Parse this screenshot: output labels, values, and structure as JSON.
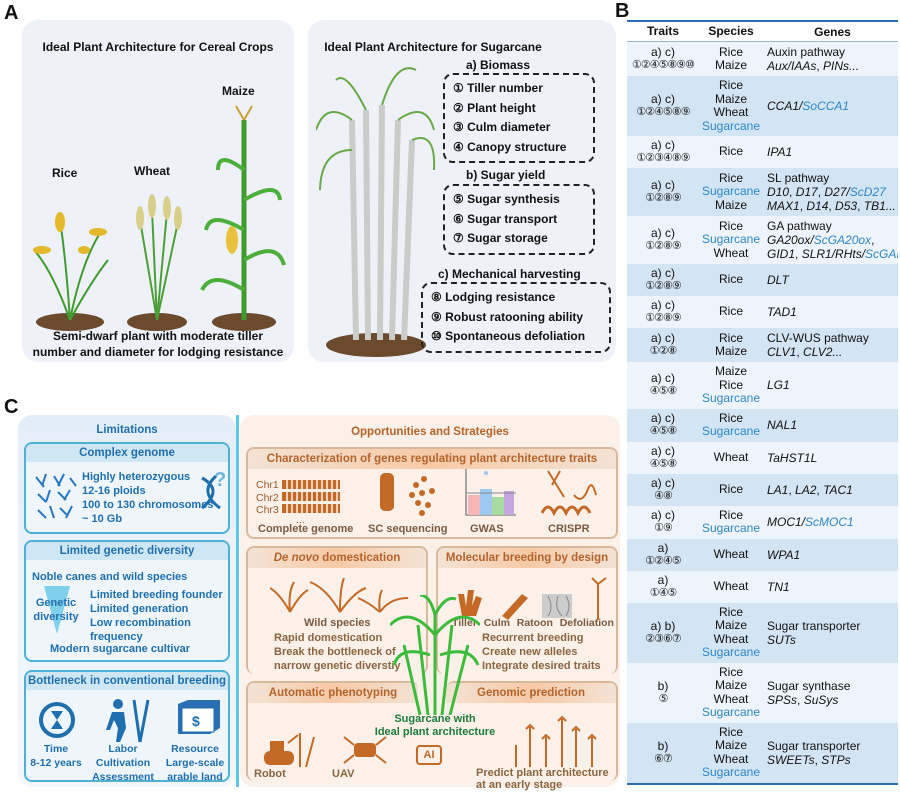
{
  "panel_labels": {
    "a": "A",
    "b": "B",
    "c": "C"
  },
  "panelA": {
    "left": {
      "title": "Ideal Plant Architecture for Cereal Crops",
      "plants": [
        "Rice",
        "Wheat",
        "Maize"
      ],
      "caption": [
        "Semi-dwarf plant with moderate tiller",
        "number and diameter for lodging resistance"
      ]
    },
    "right": {
      "title": "Ideal Plant Architecture for Sugarcane",
      "groups": [
        {
          "heading": "a) Biomass",
          "items": [
            "① Tiller number",
            "② Plant height",
            "③ Culm diameter",
            "④ Canopy structure"
          ]
        },
        {
          "heading": "b) Sugar yield",
          "items": [
            "⑤ Sugar synthesis",
            "⑥ Sugar transport",
            "⑦ Sugar storage"
          ]
        },
        {
          "heading": "c) Mechanical harvesting",
          "items": [
            "⑧ Lodging resistance",
            "⑨ Robust ratooning ability",
            "⑩ Spontaneous defoliation"
          ]
        }
      ]
    }
  },
  "panelB": {
    "headers": [
      "Traits",
      "Species",
      "Genes"
    ],
    "colors": {
      "accent": "#2d86c8",
      "row_dark": "#d3e4f4",
      "row_light": "#eef4fb"
    },
    "rows": [
      {
        "cat": "a) c)",
        "nums": "①②④⑤⑧⑨⑩",
        "species": [
          [
            "Rice",
            0
          ],
          [
            "Maize",
            0
          ]
        ],
        "genes": [
          [
            [
              "Auxin pathway",
              0,
              0
            ]
          ],
          [
            [
              "Aux/IAAs",
              1,
              0
            ],
            [
              ", ",
              0,
              0
            ],
            [
              "PINs...",
              1,
              0
            ]
          ]
        ]
      },
      {
        "cat": "a) c)",
        "nums": "①②④⑤⑧⑨",
        "species": [
          [
            "Rice",
            0
          ],
          [
            "Maize",
            0
          ],
          [
            "Wheat",
            0
          ],
          [
            "Sugarcane",
            1
          ]
        ],
        "genes": [
          [
            [
              "CCA1/",
              1,
              0
            ],
            [
              "SoCCA1",
              1,
              1
            ]
          ]
        ]
      },
      {
        "cat": "a) c)",
        "nums": "①②③④⑧⑨",
        "species": [
          [
            "Rice",
            0
          ]
        ],
        "genes": [
          [
            [
              "IPA1",
              1,
              0
            ]
          ]
        ]
      },
      {
        "cat": "a) c)",
        "nums": "①②⑧⑨",
        "species": [
          [
            "Rice",
            0
          ],
          [
            "Sugarcane",
            1
          ],
          [
            "Maize",
            0
          ]
        ],
        "genes": [
          [
            [
              "SL pathway",
              0,
              0
            ]
          ],
          [
            [
              "D10",
              1,
              0
            ],
            [
              ", ",
              0,
              0
            ],
            [
              "D17",
              1,
              0
            ],
            [
              ", ",
              0,
              0
            ],
            [
              "D27/",
              1,
              0
            ],
            [
              "ScD27",
              1,
              1
            ]
          ],
          [
            [
              "MAX1",
              1,
              0
            ],
            [
              ", ",
              0,
              0
            ],
            [
              "D14",
              1,
              0
            ],
            [
              ", ",
              0,
              0
            ],
            [
              "D53",
              1,
              0
            ],
            [
              ", ",
              0,
              0
            ],
            [
              "TB1...",
              1,
              0
            ]
          ]
        ]
      },
      {
        "cat": "a) c)",
        "nums": "①②⑧⑨",
        "species": [
          [
            "Rice",
            0
          ],
          [
            "Sugarcane",
            1
          ],
          [
            "Wheat",
            0
          ]
        ],
        "genes": [
          [
            [
              "GA pathway",
              0,
              0
            ]
          ],
          [
            [
              "GA20ox/",
              1,
              0
            ],
            [
              "ScGA20ox",
              1,
              1
            ],
            [
              ",",
              0,
              0
            ]
          ],
          [
            [
              "GID1",
              1,
              0
            ],
            [
              ", ",
              0,
              0
            ],
            [
              "SLR1/RHts/",
              1,
              0
            ],
            [
              "ScGAI...",
              1,
              1
            ]
          ]
        ]
      },
      {
        "cat": "a) c)",
        "nums": "①②⑧⑨",
        "species": [
          [
            "Rice",
            0
          ]
        ],
        "genes": [
          [
            [
              "DLT",
              1,
              0
            ]
          ]
        ]
      },
      {
        "cat": "a) c)",
        "nums": "①②⑧⑨",
        "species": [
          [
            "Rice",
            0
          ]
        ],
        "genes": [
          [
            [
              "TAD1",
              1,
              0
            ]
          ]
        ]
      },
      {
        "cat": "a) c)",
        "nums": "①②⑧",
        "species": [
          [
            "Rice",
            0
          ],
          [
            "Maize",
            0
          ]
        ],
        "genes": [
          [
            [
              "CLV-WUS pathway",
              0,
              0
            ]
          ],
          [
            [
              "CLV1",
              1,
              0
            ],
            [
              ", ",
              0,
              0
            ],
            [
              "CLV2...",
              1,
              0
            ]
          ]
        ]
      },
      {
        "cat": "a) c)",
        "nums": "④⑤⑧",
        "species": [
          [
            "Maize",
            0
          ],
          [
            "Rice",
            0
          ],
          [
            "Sugarcane",
            1
          ]
        ],
        "genes": [
          [
            [
              "LG1",
              1,
              0
            ]
          ]
        ]
      },
      {
        "cat": "a) c)",
        "nums": "④⑤⑧",
        "species": [
          [
            "Rice",
            0
          ],
          [
            "Sugarcane",
            1
          ]
        ],
        "genes": [
          [
            [
              "NAL1",
              1,
              0
            ]
          ]
        ]
      },
      {
        "cat": "a) c)",
        "nums": "④⑤⑧",
        "species": [
          [
            "Wheat",
            0
          ]
        ],
        "genes": [
          [
            [
              "TaHST1L",
              1,
              0
            ]
          ]
        ]
      },
      {
        "cat": "a) c)",
        "nums": "④⑧",
        "species": [
          [
            "Rice",
            0
          ]
        ],
        "genes": [
          [
            [
              "LA1",
              1,
              0
            ],
            [
              ", ",
              0,
              0
            ],
            [
              "LA2",
              1,
              0
            ],
            [
              ", ",
              0,
              0
            ],
            [
              "TAC1",
              1,
              0
            ]
          ]
        ]
      },
      {
        "cat": "a) c)",
        "nums": "①⑨",
        "species": [
          [
            "Rice",
            0
          ],
          [
            "Sugarcane",
            1
          ]
        ],
        "genes": [
          [
            [
              "MOC1/",
              1,
              0
            ],
            [
              "ScMOC1",
              1,
              1
            ]
          ]
        ]
      },
      {
        "cat": "a)",
        "nums": "①②④⑤",
        "species": [
          [
            "Wheat",
            0
          ]
        ],
        "genes": [
          [
            [
              "WPA1",
              1,
              0
            ]
          ]
        ]
      },
      {
        "cat": "a)",
        "nums": "①④⑤",
        "species": [
          [
            "Wheat",
            0
          ]
        ],
        "genes": [
          [
            [
              "TN1",
              1,
              0
            ]
          ]
        ]
      },
      {
        "cat": "a) b)",
        "nums": "②③⑥⑦",
        "species": [
          [
            "Rice",
            0
          ],
          [
            "Maize",
            0
          ],
          [
            "Wheat",
            0
          ],
          [
            "Sugarcane",
            1
          ]
        ],
        "genes": [
          [
            [
              "Sugar transporter",
              0,
              0
            ]
          ],
          [
            [
              "SUTs",
              1,
              0
            ]
          ]
        ]
      },
      {
        "cat": "b)",
        "nums": "⑤",
        "species": [
          [
            "Rice",
            0
          ],
          [
            "Maize",
            0
          ],
          [
            "Wheat",
            0
          ],
          [
            "Sugarcane",
            1
          ]
        ],
        "genes": [
          [
            [
              "Sugar synthase",
              0,
              0
            ]
          ],
          [
            [
              "SPSs",
              1,
              0
            ],
            [
              ", ",
              0,
              0
            ],
            [
              "SuSys",
              1,
              0
            ]
          ]
        ]
      },
      {
        "cat": "b)",
        "nums": "⑥⑦",
        "species": [
          [
            "Rice",
            0
          ],
          [
            "Maize",
            0
          ],
          [
            "Wheat",
            0
          ],
          [
            "Sugarcane",
            1
          ]
        ],
        "genes": [
          [
            [
              "Sugar transporter",
              0,
              0
            ]
          ],
          [
            [
              "SWEETs",
              1,
              0
            ],
            [
              ", ",
              0,
              0
            ],
            [
              "STPs",
              1,
              0
            ]
          ]
        ]
      }
    ]
  },
  "panelC": {
    "limitations": {
      "title": "Limitations",
      "complex": {
        "title": "Complex genome",
        "lines": [
          "Highly heterozygous",
          "12-16 ploids",
          "100 to 130 chromosomes",
          "~ 10 Gb"
        ]
      },
      "diversity": {
        "title": "Limited genetic diversity",
        "top": "Noble canes and wild species",
        "axis": "Genetic diversity",
        "lines": [
          "Limited breeding founder",
          "Limited generation",
          "Low recombination frequency"
        ],
        "bottom": "Modern sugarcane cultivar"
      },
      "bottleneck": {
        "title": "Bottleneck in conventional breeding",
        "items": [
          [
            "Time",
            "8-12 years"
          ],
          [
            "Labor",
            "Cultivation",
            "Assessment"
          ],
          [
            "Resource",
            "Large-scale",
            "arable land"
          ]
        ]
      }
    },
    "opportunities": {
      "title": "Opportunities and Strategies",
      "genes": {
        "title": "Characterization of genes regulating plant architecture traits",
        "chr": [
          "Chr1",
          "Chr2",
          "Chr3",
          "..."
        ],
        "items": [
          "Complete genome",
          "SC sequencing",
          "GWAS",
          "CRISPR"
        ]
      },
      "denovo": {
        "title_italic": "De novo",
        "title_rest": " domestication",
        "label": "Wild species",
        "lines": [
          "Rapid domestication",
          "Break the bottleneck of",
          "narrow genetic diverstiy"
        ]
      },
      "design": {
        "title": "Molecular breeding by design",
        "items": [
          "Tiller",
          "Culm",
          "Ratoon",
          "Defoliation"
        ],
        "lines": [
          "Recurrent breeding",
          "Create new alleles",
          "Integrate desired traits"
        ]
      },
      "center": [
        "Sugarcane with",
        "Ideal plant architecture"
      ],
      "pheno": {
        "title": "Automatic phenotyping",
        "items": [
          "Robot",
          "UAV"
        ],
        "ai": "AI"
      },
      "genomic": {
        "title": "Genomic prediction",
        "lines": [
          "Predict plant architecture",
          "at an early stage"
        ]
      }
    }
  }
}
